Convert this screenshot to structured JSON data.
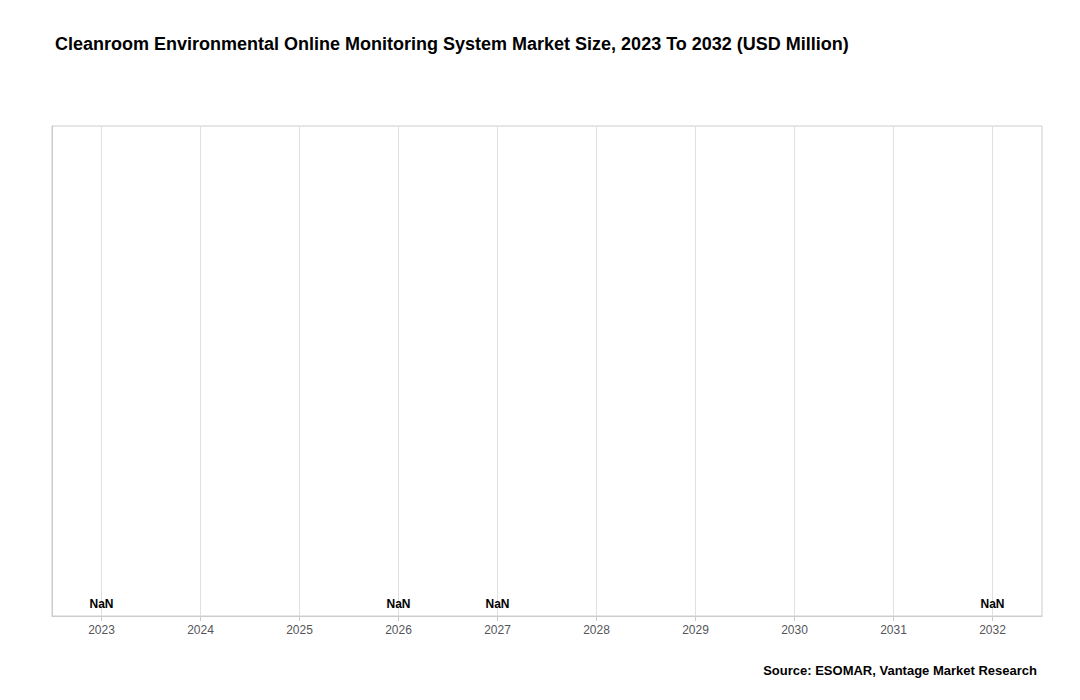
{
  "chart_data": {
    "type": "bar",
    "title": "Cleanroom Environmental Online Monitoring System Market Size, 2023 To 2032 (USD Million)",
    "source": "Source: ESOMAR, Vantage Market Research",
    "categories": [
      "2023",
      "2024",
      "2025",
      "2026",
      "2027",
      "2028",
      "2029",
      "2030",
      "2031",
      "2032"
    ],
    "values": [
      0,
      0,
      0,
      0,
      0,
      0,
      0,
      0,
      0,
      0
    ],
    "ylim": [
      0,
      1
    ],
    "tick_labels": "x",
    "grid": true,
    "annotations": [
      {
        "x": "2023",
        "text": "NaN"
      },
      {
        "x": "2026",
        "text": "NaN"
      },
      {
        "x": "2027",
        "text": "NaN"
      },
      {
        "x": "2032",
        "text": "NaN"
      }
    ]
  }
}
